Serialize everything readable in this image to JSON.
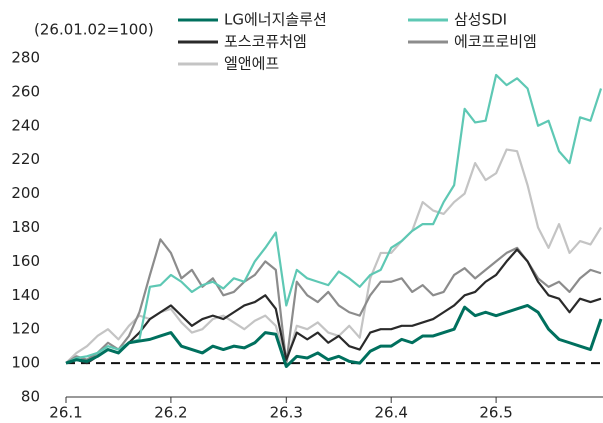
{
  "chart_data": {
    "type": "line",
    "annotation": "(26.01.02=100)",
    "categories": [
      "26.1",
      null,
      null,
      null,
      null,
      null,
      null,
      null,
      null,
      null,
      "26.2",
      null,
      null,
      null,
      null,
      null,
      null,
      null,
      null,
      null,
      null,
      "26.3",
      null,
      null,
      null,
      null,
      null,
      null,
      null,
      null,
      null,
      "26.4",
      null,
      null,
      null,
      null,
      null,
      null,
      null,
      null,
      null,
      "26.5",
      null,
      null,
      null,
      null,
      null,
      null,
      null,
      null,
      null,
      null
    ],
    "series": [
      {
        "name": "LG에너지솔루션",
        "color": "#00705e",
        "values": [
          100,
          102,
          101,
          104,
          108,
          106,
          112,
          113,
          114,
          116,
          118,
          110,
          108,
          106,
          110,
          108,
          110,
          109,
          112,
          118,
          117,
          98,
          104,
          103,
          106,
          102,
          104,
          101,
          100,
          107,
          110,
          110,
          114,
          112,
          116,
          116,
          118,
          120,
          133,
          128,
          130,
          128,
          130,
          132,
          134,
          130,
          120,
          114,
          112,
          110,
          108,
          126
        ]
      },
      {
        "name": "삼성SDI",
        "color": "#5ec8b4",
        "values": [
          100,
          103,
          104,
          106,
          110,
          108,
          112,
          114,
          145,
          146,
          152,
          148,
          142,
          146,
          148,
          144,
          150,
          148,
          160,
          168,
          177,
          134,
          155,
          150,
          148,
          146,
          154,
          150,
          145,
          152,
          155,
          168,
          172,
          178,
          182,
          182,
          195,
          205,
          250,
          242,
          243,
          270,
          264,
          268,
          262,
          240,
          243,
          225,
          218,
          245,
          243,
          262
        ]
      },
      {
        "name": "포스코퓨처엠",
        "color": "#2a2a2a",
        "values": [
          100,
          102,
          100,
          104,
          108,
          106,
          112,
          118,
          126,
          130,
          134,
          128,
          122,
          126,
          128,
          126,
          130,
          134,
          136,
          140,
          132,
          102,
          118,
          114,
          118,
          112,
          116,
          110,
          108,
          118,
          120,
          120,
          122,
          122,
          124,
          126,
          130,
          134,
          140,
          142,
          148,
          152,
          160,
          167,
          160,
          148,
          140,
          138,
          130,
          138,
          136,
          138
        ]
      },
      {
        "name": "에코프로비엠",
        "color": "#8c8c8c",
        "values": [
          100,
          104,
          102,
          106,
          112,
          108,
          116,
          130,
          152,
          173,
          165,
          150,
          155,
          145,
          150,
          140,
          142,
          148,
          152,
          160,
          155,
          100,
          148,
          140,
          136,
          142,
          134,
          130,
          128,
          140,
          148,
          148,
          150,
          142,
          146,
          140,
          142,
          152,
          156,
          150,
          155,
          160,
          165,
          168,
          160,
          150,
          145,
          148,
          142,
          150,
          155,
          153
        ]
      },
      {
        "name": "엘앤에프",
        "color": "#c4c4c4",
        "values": [
          100,
          106,
          110,
          116,
          120,
          114,
          122,
          128,
          126,
          130,
          132,
          124,
          118,
          120,
          126,
          128,
          124,
          120,
          125,
          128,
          122,
          100,
          122,
          120,
          124,
          118,
          116,
          122,
          115,
          150,
          165,
          165,
          172,
          178,
          195,
          190,
          188,
          195,
          200,
          218,
          208,
          212,
          226,
          225,
          205,
          180,
          168,
          182,
          165,
          172,
          170,
          180
        ]
      }
    ],
    "reference_line": 100,
    "ylim": [
      80,
      280
    ],
    "yticks": [
      80,
      100,
      120,
      140,
      160,
      180,
      200,
      220,
      240,
      260,
      280
    ]
  }
}
